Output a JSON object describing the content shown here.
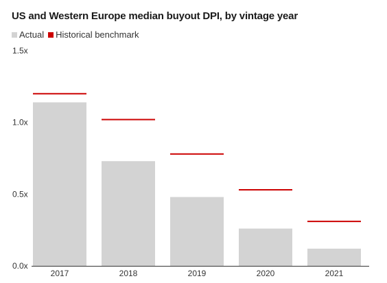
{
  "chart_data": {
    "type": "bar",
    "title": "US and Western Europe median buyout DPI, by vintage year",
    "categories": [
      "2017",
      "2018",
      "2019",
      "2020",
      "2021"
    ],
    "series": [
      {
        "name": "Actual",
        "values": [
          1.14,
          0.73,
          0.48,
          0.26,
          0.12
        ],
        "color": "#d3d3d3"
      },
      {
        "name": "Historical benchmark",
        "values": [
          1.2,
          1.02,
          0.78,
          0.53,
          0.31
        ],
        "color": "#cc0000"
      }
    ],
    "ylim": [
      0,
      1.5
    ],
    "yticks": [
      "0.0x",
      "0.5x",
      "1.0x",
      "1.5x"
    ],
    "ytick_values": [
      0,
      0.5,
      1.0,
      1.5
    ],
    "grid": false,
    "legend_position": "top-left"
  }
}
